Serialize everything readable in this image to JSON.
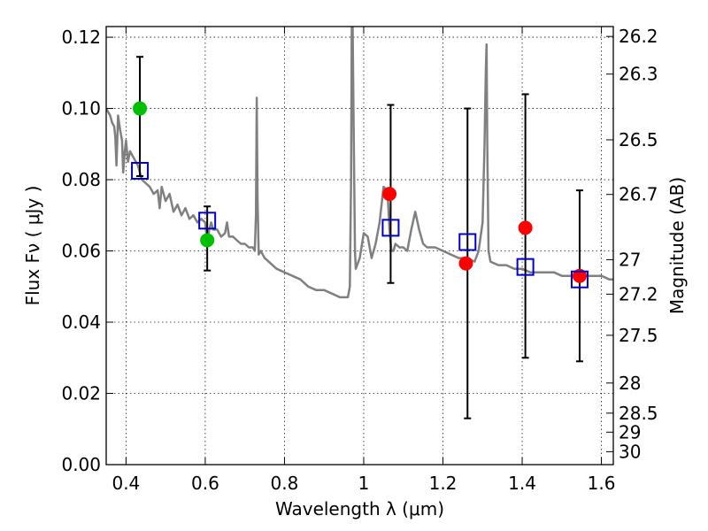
{
  "chart_data": {
    "type": "scatter",
    "xlabel": "Wavelength  λ (μm)",
    "ylabel": "Flux  Fν  ( μJy )",
    "y2label": "Magnitude (AB)",
    "xlim": [
      0.35,
      1.63
    ],
    "ylim": [
      0.0,
      0.123
    ],
    "x_ticks": [
      0.4,
      0.6,
      0.8,
      1.0,
      1.2,
      1.4,
      1.6
    ],
    "x_tick_labels": [
      "0.4",
      "0.6",
      "0.8",
      "1",
      "1.2",
      "1.4",
      "1.6"
    ],
    "y_ticks": [
      0.0,
      0.02,
      0.04,
      0.06,
      0.08,
      0.1,
      0.12
    ],
    "y_tick_labels": [
      "0.00",
      "0.02",
      "0.04",
      "0.06",
      "0.08",
      "0.10",
      "0.12"
    ],
    "mag_ticks": [
      26.2,
      26.3,
      26.5,
      26.7,
      27,
      27.2,
      27.5,
      28,
      28.5,
      29,
      30
    ],
    "mag_tick_labels": [
      "26.2",
      "26.3",
      "26.5",
      "26.7",
      "27",
      "27.2",
      "27.5",
      "28",
      "28.5",
      "29",
      "30"
    ],
    "grid": true,
    "colors": {
      "template": "#808080",
      "green": "#00c000",
      "red": "#ff0000",
      "model": "#0000cc",
      "errorbar": "#000000"
    },
    "template_spectrum": {
      "x": [
        0.35,
        0.36,
        0.365,
        0.37,
        0.373,
        0.376,
        0.38,
        0.385,
        0.39,
        0.393,
        0.397,
        0.4,
        0.405,
        0.41,
        0.42,
        0.43,
        0.435,
        0.44,
        0.45,
        0.46,
        0.47,
        0.48,
        0.485,
        0.49,
        0.5,
        0.51,
        0.52,
        0.53,
        0.54,
        0.55,
        0.56,
        0.57,
        0.58,
        0.59,
        0.6,
        0.605,
        0.61,
        0.615,
        0.62,
        0.63,
        0.64,
        0.65,
        0.655,
        0.66,
        0.67,
        0.68,
        0.69,
        0.7,
        0.71,
        0.72,
        0.725,
        0.728,
        0.73,
        0.732,
        0.735,
        0.74,
        0.75,
        0.76,
        0.78,
        0.8,
        0.82,
        0.84,
        0.86,
        0.88,
        0.9,
        0.92,
        0.94,
        0.96,
        0.965,
        0.968,
        0.97,
        0.972,
        0.975,
        0.978,
        0.98,
        0.99,
        1.0,
        1.01,
        1.02,
        1.03,
        1.04,
        1.05,
        1.06,
        1.065,
        1.07,
        1.075,
        1.08,
        1.09,
        1.1,
        1.11,
        1.12,
        1.13,
        1.14,
        1.15,
        1.16,
        1.18,
        1.2,
        1.22,
        1.24,
        1.26,
        1.28,
        1.29,
        1.3,
        1.305,
        1.308,
        1.31,
        1.312,
        1.315,
        1.32,
        1.34,
        1.36,
        1.38,
        1.4,
        1.42,
        1.44,
        1.46,
        1.48,
        1.5,
        1.52,
        1.54,
        1.56,
        1.58,
        1.6,
        1.62,
        1.63
      ],
      "y": [
        0.1,
        0.098,
        0.096,
        0.095,
        0.092,
        0.084,
        0.098,
        0.094,
        0.091,
        0.082,
        0.088,
        0.091,
        0.085,
        0.088,
        0.086,
        0.084,
        0.082,
        0.08,
        0.079,
        0.078,
        0.076,
        0.077,
        0.072,
        0.078,
        0.074,
        0.076,
        0.071,
        0.073,
        0.07,
        0.072,
        0.069,
        0.07,
        0.068,
        0.069,
        0.068,
        0.062,
        0.066,
        0.068,
        0.066,
        0.066,
        0.064,
        0.065,
        0.068,
        0.064,
        0.064,
        0.063,
        0.062,
        0.062,
        0.061,
        0.061,
        0.06,
        0.07,
        0.103,
        0.075,
        0.059,
        0.06,
        0.058,
        0.057,
        0.055,
        0.054,
        0.053,
        0.052,
        0.05,
        0.049,
        0.049,
        0.048,
        0.047,
        0.047,
        0.05,
        0.08,
        0.125,
        0.125,
        0.09,
        0.06,
        0.055,
        0.058,
        0.065,
        0.064,
        0.058,
        0.062,
        0.068,
        0.078,
        0.077,
        0.066,
        0.06,
        0.06,
        0.062,
        0.061,
        0.061,
        0.06,
        0.066,
        0.071,
        0.066,
        0.062,
        0.061,
        0.061,
        0.06,
        0.059,
        0.058,
        0.058,
        0.057,
        0.06,
        0.068,
        0.09,
        0.11,
        0.118,
        0.09,
        0.06,
        0.057,
        0.056,
        0.056,
        0.055,
        0.055,
        0.054,
        0.054,
        0.054,
        0.054,
        0.053,
        0.053,
        0.053,
        0.053,
        0.053,
        0.053,
        0.052,
        0.052
      ]
    },
    "series": [
      {
        "marker": "circle",
        "color": "green",
        "x": [
          0.435,
          0.605
        ],
        "y": [
          0.1,
          0.063
        ]
      },
      {
        "marker": "circle",
        "color": "red",
        "x": [
          1.065,
          1.258,
          1.408,
          1.545
        ],
        "y": [
          0.076,
          0.0565,
          0.0665,
          0.053
        ]
      },
      {
        "marker": "open-square",
        "color": "model",
        "x": [
          0.435,
          0.605,
          1.068,
          1.262,
          1.408,
          1.545
        ],
        "y": [
          0.0825,
          0.0685,
          0.0665,
          0.0625,
          0.0555,
          0.052
        ]
      }
    ],
    "errorbars": [
      {
        "x": 0.435,
        "low": 0.081,
        "high": 0.1145
      },
      {
        "x": 0.605,
        "low": 0.0545,
        "high": 0.0725
      },
      {
        "x": 1.068,
        "low": 0.051,
        "high": 0.101
      },
      {
        "x": 1.262,
        "low": 0.013,
        "high": 0.1
      },
      {
        "x": 1.408,
        "low": 0.03,
        "high": 0.104
      },
      {
        "x": 1.545,
        "low": 0.029,
        "high": 0.077
      }
    ]
  }
}
